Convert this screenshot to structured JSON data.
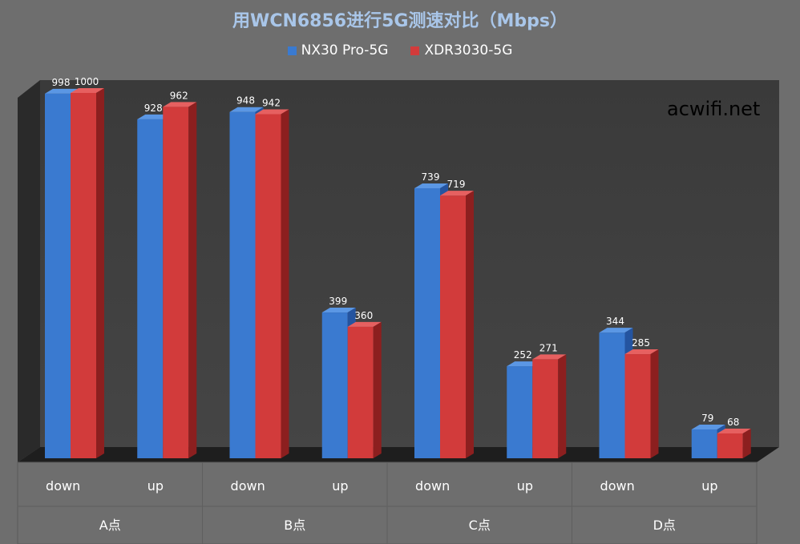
{
  "chart_data": {
    "type": "bar",
    "title": "用WCN6856进行5G测速对比（Mbps）",
    "categories": [
      "down",
      "up",
      "down",
      "up",
      "down",
      "up",
      "down",
      "up"
    ],
    "groups": [
      "A点",
      "B点",
      "C点",
      "D点"
    ],
    "series": [
      {
        "name": "NX30 Pro-5G",
        "color": "#3a7ad0",
        "values": [
          998,
          928,
          948,
          399,
          739,
          252,
          344,
          79
        ]
      },
      {
        "name": "XDR3030-5G",
        "color": "#d23b3b",
        "values": [
          1000,
          962,
          942,
          360,
          719,
          271,
          285,
          68
        ]
      }
    ],
    "ylim": [
      0,
      1000
    ],
    "grid": false,
    "legend": "top",
    "style": "3d-column"
  },
  "watermark": "acwifi.net"
}
